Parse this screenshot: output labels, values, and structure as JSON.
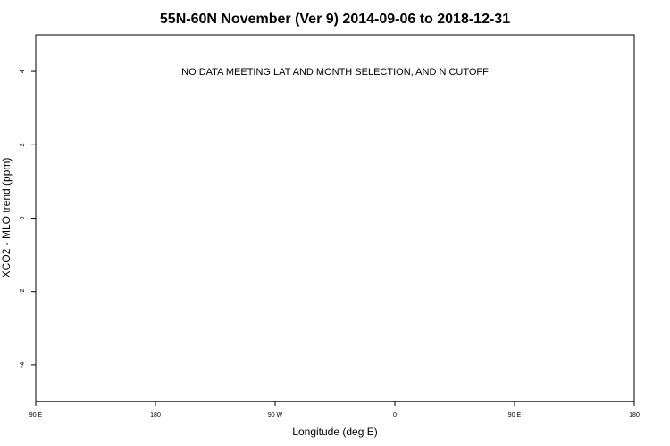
{
  "chart_data": {
    "type": "scatter",
    "title": "55N-60N November (Ver 9)   2014-09-06 to 2018-12-31",
    "xlabel": "Longitude (deg E)",
    "ylabel": "XCO2 - MLO trend (ppm)",
    "annotation": "NO DATA MEETING LAT AND MONTH SELECTION, AND N CUTOFF",
    "xlim": [
      90,
      540
    ],
    "ylim": [
      -5,
      5
    ],
    "xticks": [
      {
        "value": 90,
        "label": "90 E"
      },
      {
        "value": 180,
        "label": "180"
      },
      {
        "value": 270,
        "label": "90 W"
      },
      {
        "value": 360,
        "label": "0"
      },
      {
        "value": 450,
        "label": "90 E"
      },
      {
        "value": 540,
        "label": "180"
      }
    ],
    "yticks": [
      {
        "value": -4,
        "label": "-4"
      },
      {
        "value": -2,
        "label": "-2"
      },
      {
        "value": 0,
        "label": "0"
      },
      {
        "value": 2,
        "label": "2"
      },
      {
        "value": 4,
        "label": "4"
      }
    ],
    "points": [],
    "grid": false,
    "legend": "none"
  }
}
